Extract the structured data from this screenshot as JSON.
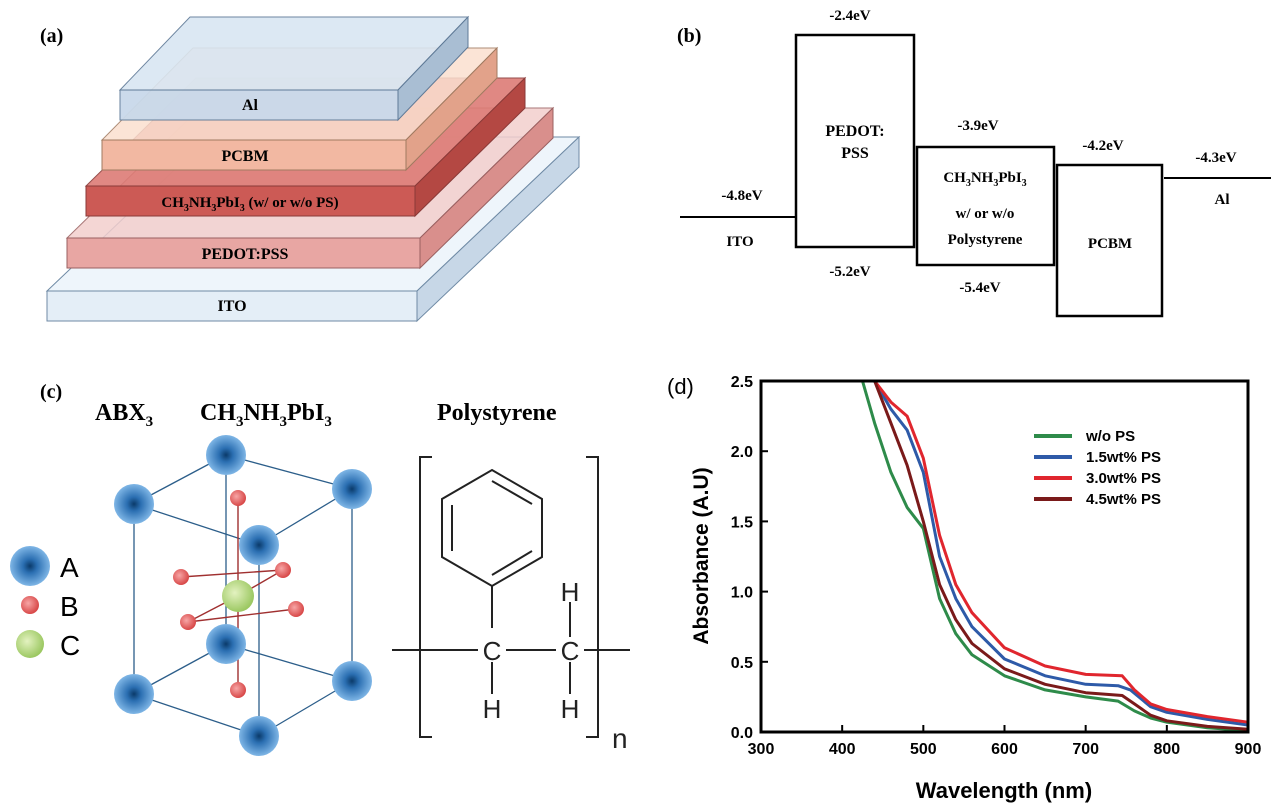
{
  "panel_a": {
    "label": "(a)",
    "layers": {
      "al": "Al",
      "pcbm": "PCBM",
      "perovskite_pre": "CH",
      "perovskite_sub1": "3",
      "perovskite_mid1": "NH",
      "perovskite_sub2": "3",
      "perovskite_mid2": "PbI",
      "perovskite_sub3": "3",
      "perovskite_post": " (w/ or w/o PS)",
      "pedot": "PEDOT:PSS",
      "ito": "ITO"
    },
    "colors": {
      "al": "#c9d9ea",
      "pcbm": "#f2b8a2",
      "perovskite": "#cc5a55",
      "pedot": "#e8a6a3",
      "ito": "#e4eef7"
    }
  },
  "panel_b": {
    "label": "(b)",
    "ito": {
      "name": "ITO",
      "level": "-4.8eV"
    },
    "pedot": {
      "name_line1": "PEDOT:",
      "name_line2": "PSS",
      "top": "-2.4eV",
      "bottom": "-5.2eV"
    },
    "perovskite": {
      "pre": "CH",
      "sub1": "3",
      "mid1": "NH",
      "sub2": "3",
      "mid2": "PbI",
      "sub3": "3",
      "line2": "w/ or w/o",
      "line3": "Polystyrene",
      "top": "-3.9eV",
      "bottom": "-5.4eV"
    },
    "pcbm": {
      "name": "PCBM",
      "top": "-4.2eV"
    },
    "al": {
      "name": "Al",
      "level": "-4.3eV"
    }
  },
  "panel_c": {
    "label": "(c)",
    "abx_pre": "ABX",
    "abx_sub": "3",
    "formula": {
      "pre": "CH",
      "sub1": "3",
      "mid1": "NH",
      "sub2": "3",
      "mid2": "PbI",
      "sub3": "3"
    },
    "polystyrene_title": "Polystyrene",
    "legend": [
      {
        "label": "A",
        "color": "#3b7fc4"
      },
      {
        "label": "B",
        "color": "#e05a5a"
      },
      {
        "label": "C",
        "color": "#a8d070"
      }
    ],
    "atoms": {
      "C1": "C",
      "C2": "C",
      "H_top": "H",
      "H_bottom1": "H",
      "H_bottom2": "H"
    },
    "repeat": "n"
  },
  "panel_d": {
    "label": "(d)",
    "chart_data": {
      "type": "line",
      "xlabel": "Wavelength (nm)",
      "ylabel": "Absorbance (A.U)",
      "xlim": [
        300,
        900
      ],
      "ylim": [
        0.0,
        2.5
      ],
      "xticks": [
        "300",
        "400",
        "500",
        "600",
        "700",
        "800",
        "900"
      ],
      "yticks": [
        "0.0",
        "0.5",
        "1.0",
        "1.5",
        "2.0",
        "2.5"
      ],
      "legend_position": "top-right",
      "series": [
        {
          "name": "w/o PS",
          "color": "#2e8b4a",
          "x": [
            425,
            440,
            460,
            480,
            500,
            520,
            540,
            560,
            600,
            650,
            700,
            740,
            760,
            780,
            800,
            850,
            900
          ],
          "y": [
            2.5,
            2.2,
            1.85,
            1.6,
            1.45,
            0.95,
            0.7,
            0.55,
            0.4,
            0.3,
            0.25,
            0.22,
            0.15,
            0.1,
            0.07,
            0.03,
            0.01
          ]
        },
        {
          "name": "1.5wt% PS",
          "color": "#2e5aa8",
          "x": [
            440,
            460,
            480,
            500,
            520,
            540,
            560,
            600,
            650,
            700,
            740,
            755,
            780,
            800,
            850,
            900
          ],
          "y": [
            2.5,
            2.3,
            2.15,
            1.85,
            1.25,
            0.95,
            0.75,
            0.52,
            0.4,
            0.34,
            0.33,
            0.3,
            0.18,
            0.14,
            0.09,
            0.05
          ]
        },
        {
          "name": "3.0wt% PS",
          "color": "#e0262e",
          "x": [
            440,
            460,
            480,
            500,
            520,
            540,
            560,
            600,
            650,
            700,
            745,
            760,
            780,
            800,
            850,
            900
          ],
          "y": [
            2.5,
            2.35,
            2.25,
            1.95,
            1.4,
            1.05,
            0.85,
            0.6,
            0.47,
            0.41,
            0.4,
            0.3,
            0.2,
            0.16,
            0.11,
            0.07
          ]
        },
        {
          "name": "4.5wt% PS",
          "color": "#7a1a1a",
          "x": [
            440,
            460,
            480,
            500,
            520,
            540,
            560,
            600,
            650,
            700,
            745,
            760,
            780,
            800,
            850,
            900
          ],
          "y": [
            2.5,
            2.2,
            1.9,
            1.5,
            1.05,
            0.8,
            0.63,
            0.45,
            0.34,
            0.28,
            0.26,
            0.2,
            0.12,
            0.08,
            0.04,
            0.02
          ]
        }
      ]
    }
  }
}
